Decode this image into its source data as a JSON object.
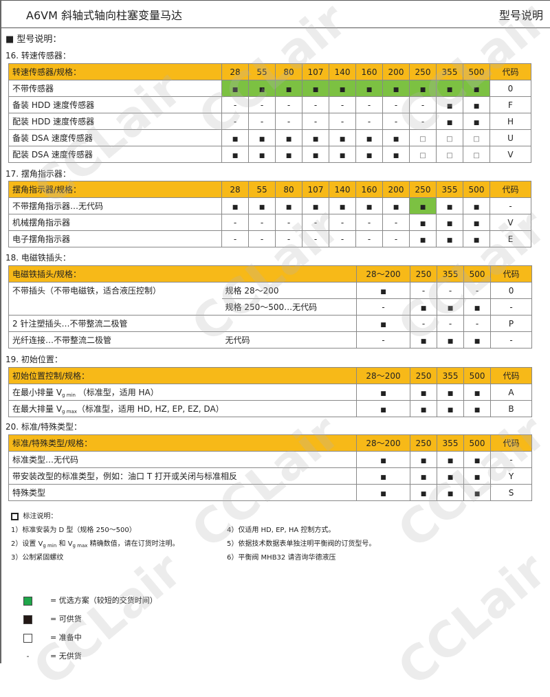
{
  "header": {
    "title": "A6VM 斜轴式轴向柱塞变量马达",
    "section": "型号说明"
  },
  "main_heading": "■  型号说明：",
  "colors": {
    "header_bg": "#f7b918",
    "preferred": "#7cc142"
  },
  "tables": [
    {
      "title": "16. 转速传感器：",
      "header": [
        "转速传感器/规格：",
        "28",
        "55",
        "80",
        "107",
        "140",
        "160",
        "200",
        "250",
        "355",
        "500",
        "代码"
      ],
      "rows": [
        {
          "label": "不带传感器",
          "cells": [
            "■",
            "■",
            "■",
            "■",
            "■",
            "■",
            "■",
            "■",
            "■",
            "■"
          ],
          "code": "0",
          "preferred": [
            0,
            1,
            2,
            3,
            4,
            5,
            6,
            7,
            8,
            9
          ]
        },
        {
          "label": "备装 HDD 速度传感器",
          "cells": [
            "-",
            "-",
            "-",
            "-",
            "-",
            "-",
            "-",
            "-",
            "■",
            "■"
          ],
          "code": "F"
        },
        {
          "label": "配装 HDD 速度传感器",
          "cells": [
            "-",
            "-",
            "-",
            "-",
            "-",
            "-",
            "-",
            "-",
            "■",
            "■"
          ],
          "code": "H"
        },
        {
          "label": "备装 DSA 速度传感器",
          "cells": [
            "■",
            "■",
            "■",
            "■",
            "■",
            "■",
            "■",
            "□",
            "□",
            "□"
          ],
          "code": "U"
        },
        {
          "label": "配装 DSA 速度传感器",
          "cells": [
            "■",
            "■",
            "■",
            "■",
            "■",
            "■",
            "■",
            "□",
            "□",
            "□"
          ],
          "code": "V"
        }
      ]
    },
    {
      "title": "17. 摆角指示器：",
      "header": [
        "摆角指示器/规格：",
        "28",
        "55",
        "80",
        "107",
        "140",
        "160",
        "200",
        "250",
        "355",
        "500",
        "代码"
      ],
      "rows": [
        {
          "label": "不带摆角指示器…无代码",
          "cells": [
            "■",
            "■",
            "■",
            "■",
            "■",
            "■",
            "■",
            "■",
            "■",
            "■"
          ],
          "code": "-",
          "preferred": [
            7
          ]
        },
        {
          "label": "机械摆角指示器",
          "cells": [
            "-",
            "-",
            "-",
            "-",
            "-",
            "-",
            "-",
            "■",
            "■",
            "■"
          ],
          "code": "V"
        },
        {
          "label": "电子摆角指示器",
          "cells": [
            "-",
            "-",
            "-",
            "-",
            "-",
            "-",
            "-",
            "■",
            "■",
            "■"
          ],
          "code": "E"
        }
      ]
    },
    {
      "title": "18. 电磁铁插头：",
      "header": [
        "电磁铁插头/规格：",
        "28～200",
        "250",
        "355",
        "500",
        "代码"
      ],
      "rows": [
        {
          "label": "不带插头（不带电磁铁，适合液压控制）",
          "sublabel": "规格 28～200",
          "cells": [
            "■",
            "-",
            "-",
            "-"
          ],
          "code": "0"
        },
        {
          "label": "",
          "sublabel": "规格 250～500…无代码",
          "cells": [
            "-",
            "■",
            "■",
            "■"
          ],
          "code": "-"
        },
        {
          "label": "2 针注塑插头…不带整流二极管",
          "sublabel": "",
          "cells": [
            "■",
            "-",
            "-",
            "-"
          ],
          "code": "P"
        },
        {
          "label": "光纤连接…不带整流二极管",
          "sublabel": "无代码",
          "cells": [
            "-",
            "■",
            "■",
            "■"
          ],
          "code": "-"
        }
      ]
    },
    {
      "title": "19. 初始位置：",
      "header": [
        "初始位置控制/规格：",
        "28～200",
        "250",
        "355",
        "500",
        "代码"
      ],
      "rows": [
        {
          "label": "在最小排量 V",
          "sub": "g min",
          "suffix": " （标准型，适用 HA）",
          "cells": [
            "■",
            "■",
            "■",
            "■"
          ],
          "code": "A"
        },
        {
          "label": "在最大排量 V",
          "sub": "g max",
          "suffix": "（标准型，适用  HD, HZ, EP, EZ, DA）",
          "cells": [
            "■",
            "■",
            "■",
            "■"
          ],
          "code": "B"
        }
      ]
    },
    {
      "title": "20. 标准/特殊类型：",
      "header": [
        "标准/特殊类型/规格：",
        "28～200",
        "250",
        "355",
        "500",
        "代码"
      ],
      "rows": [
        {
          "label": "标准类型…无代码",
          "cells": [
            "■",
            "■",
            "■",
            "■"
          ],
          "code": "-"
        },
        {
          "label": "带安装改型的标准类型，例如：油口 T 打开或关闭与标准相反",
          "cells": [
            "■",
            "■",
            "■",
            "■"
          ],
          "code": "Y"
        },
        {
          "label": "特殊类型",
          "cells": [
            "■",
            "■",
            "■",
            "■"
          ],
          "code": "S"
        }
      ]
    }
  ],
  "notes": {
    "title": "标注说明：",
    "left": [
      "1）标准安装为 D 型（规格 250～500）",
      "2）设置 V{g min} 和 V{g max} 精确数值，请在订货时注明。",
      "3）公制紧固螺纹"
    ],
    "right": [
      "4）仅适用 HD, EP, HA 控制方式。",
      "5）依据技术数据表单独注明平衡阀的订货型号。",
      "6）平衡阀 MHB32 请咨询华德液压"
    ]
  },
  "legend": [
    {
      "symbol": "green-square",
      "text": "=  优选方案（较短的交货时间）"
    },
    {
      "symbol": "black-square",
      "text": "=  可供货"
    },
    {
      "symbol": "white-square",
      "text": "=  准备中"
    },
    {
      "symbol": "dash",
      "text": "=  无供货"
    }
  ],
  "watermark": "CCLair"
}
